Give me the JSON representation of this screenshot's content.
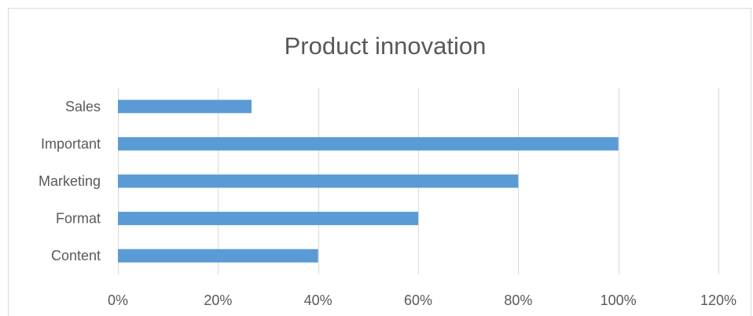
{
  "chart_data": {
    "type": "bar",
    "orientation": "horizontal",
    "title": "Product innovation",
    "categories": [
      "Sales",
      "Important",
      "Marketing",
      "Format",
      "Content"
    ],
    "values": [
      0.267,
      1.0,
      0.8,
      0.6,
      0.4
    ],
    "xlim": [
      0,
      1.2
    ],
    "xticks": [
      0,
      0.2,
      0.4,
      0.6,
      0.8,
      1.0,
      1.2
    ],
    "xtick_labels": [
      "0%",
      "20%",
      "40%",
      "60%",
      "80%",
      "100%",
      "120%"
    ],
    "grid": "vertical",
    "legend": "none",
    "bar_color": "#5b9bd5"
  }
}
